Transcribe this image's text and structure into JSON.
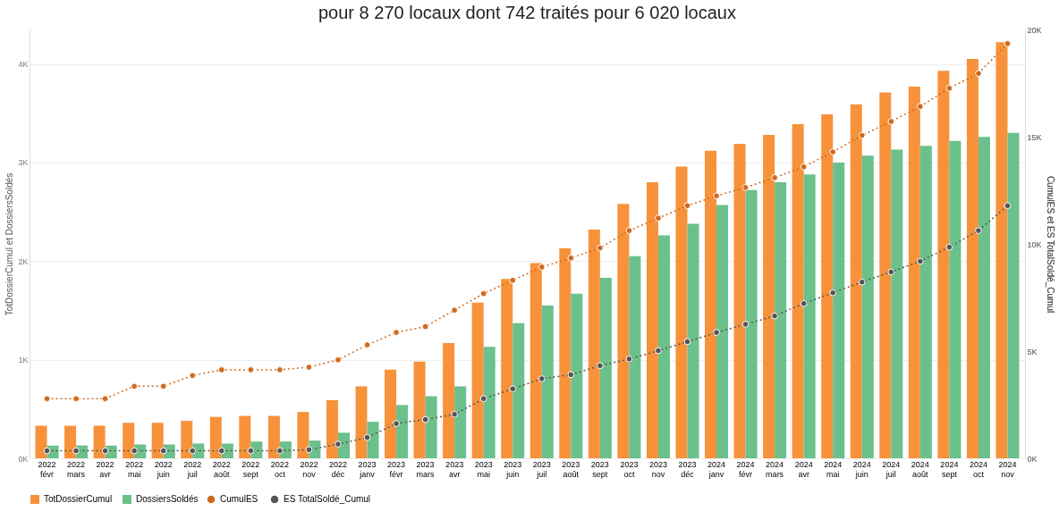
{
  "chart_data": {
    "type": "bar",
    "title": "pour 8 270 locaux dont 742 traités pour 6 020 locaux",
    "categories": [
      "2022 févr",
      "2022 mars",
      "2022 avr",
      "2022 mai",
      "2022 juin",
      "2022 juil",
      "2022 août",
      "2022 sept",
      "2022 oct",
      "2022 nov",
      "2022 déc",
      "2023 janv",
      "2023 févr",
      "2023 mars",
      "2023 avr",
      "2023 mai",
      "2023 juin",
      "2023 juil",
      "2023 août",
      "2023 sept",
      "2023 oct",
      "2023 nov",
      "2023 déc",
      "2024 janv",
      "2024 févr",
      "2024 mars",
      "2024 avr",
      "2024 mai",
      "2024 juin",
      "2024 juil",
      "2024 août",
      "2024 sept",
      "2024 oct",
      "2024 nov"
    ],
    "ylabel": "TotDossierCumul et DossiersSoldés",
    "y2label": "CumulES et ES TotalSoldé_Cumul",
    "ylim": [
      0,
      4.35
    ],
    "yticks": [
      {
        "value": 0,
        "label": "0K"
      },
      {
        "value": 1,
        "label": "1K"
      },
      {
        "value": 2,
        "label": "2K"
      },
      {
        "value": 3,
        "label": "3K"
      },
      {
        "value": 4,
        "label": "4K"
      }
    ],
    "y2lim": [
      0,
      20
    ],
    "y2ticks": [
      {
        "value": 0,
        "label": "0K"
      },
      {
        "value": 5,
        "label": "5K"
      },
      {
        "value": 10,
        "label": "10K"
      },
      {
        "value": 15,
        "label": "15K"
      },
      {
        "value": 20,
        "label": "20K"
      }
    ],
    "grid": "y",
    "legend": "bottom",
    "marker": "circle",
    "line_style": "dotted",
    "series": [
      {
        "name": "TotDossierCumul",
        "color": "#f7923a",
        "values": [
          0.33,
          0.33,
          0.33,
          0.36,
          0.36,
          0.38,
          0.42,
          0.43,
          0.43,
          0.47,
          0.59,
          0.73,
          0.9,
          0.98,
          1.17,
          1.58,
          1.82,
          1.98,
          2.13,
          2.32,
          2.58,
          2.8,
          2.96,
          3.12,
          3.19,
          3.28,
          3.39,
          3.49,
          3.59,
          3.71,
          3.77,
          3.93,
          4.05,
          4.22
        ]
      },
      {
        "name": "DossiersSoldés",
        "color": "#6cc08b",
        "values": [
          0.13,
          0.13,
          0.13,
          0.14,
          0.14,
          0.15,
          0.15,
          0.17,
          0.17,
          0.18,
          0.26,
          0.37,
          0.54,
          0.63,
          0.73,
          1.13,
          1.37,
          1.55,
          1.67,
          1.83,
          2.05,
          2.26,
          2.38,
          2.57,
          2.72,
          2.8,
          2.88,
          3.0,
          3.07,
          3.13,
          3.17,
          3.22,
          3.26,
          3.3
        ]
      },
      {
        "name": "CumulES",
        "type": "line",
        "axis": "y2",
        "color": "#d06a1e",
        "values": [
          2.78,
          2.78,
          2.78,
          3.36,
          3.36,
          3.86,
          4.13,
          4.13,
          4.13,
          4.25,
          4.59,
          5.29,
          5.87,
          6.14,
          6.91,
          7.68,
          8.3,
          8.92,
          9.34,
          9.81,
          10.62,
          11.2,
          11.78,
          12.24,
          12.63,
          13.09,
          13.59,
          14.29,
          15.06,
          15.71,
          16.41,
          17.26,
          17.95,
          19.34
        ]
      },
      {
        "name": "ES TotalSoldé_Cumul",
        "type": "line",
        "axis": "y2",
        "color": "#555555",
        "values": [
          0.35,
          0.35,
          0.35,
          0.35,
          0.35,
          0.35,
          0.35,
          0.35,
          0.35,
          0.4,
          0.66,
          0.97,
          1.62,
          1.81,
          2.05,
          2.78,
          3.24,
          3.71,
          3.9,
          4.32,
          4.63,
          5.02,
          5.44,
          5.87,
          6.25,
          6.64,
          7.22,
          7.72,
          8.22,
          8.69,
          9.19,
          9.85,
          10.62,
          11.78
        ]
      }
    ]
  }
}
